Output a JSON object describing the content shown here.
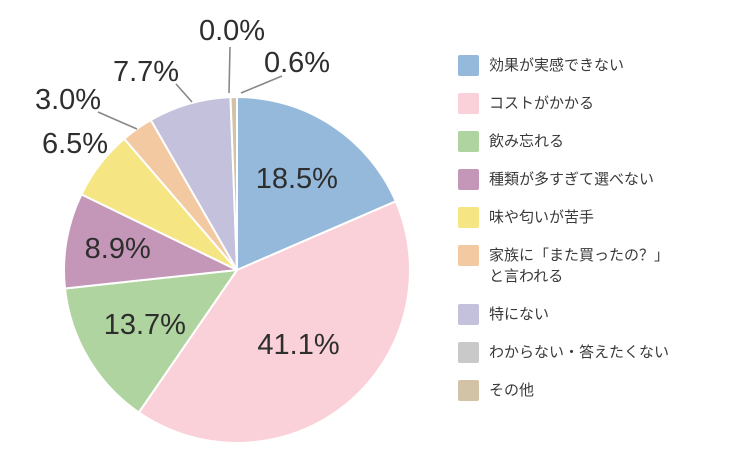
{
  "page": {
    "background": "#ffffff"
  },
  "chart_data": {
    "type": "pie",
    "title": "",
    "unit": "%",
    "direction": "clockwise",
    "start_angle": "12-oclock",
    "legend_position": "right",
    "label_color": "#2e2e2e",
    "leader_line_color": "#888888",
    "slices": [
      {
        "label": "効果が実感できない",
        "value": 18.5,
        "display": "18.5%",
        "color": "#94b9da"
      },
      {
        "label": "コストがかかる",
        "value": 41.1,
        "display": "41.1%",
        "color": "#fad1d8"
      },
      {
        "label": "飲み忘れる",
        "value": 13.7,
        "display": "13.7%",
        "color": "#afd4a0"
      },
      {
        "label": "種類が多すぎて選べない",
        "value": 8.9,
        "display": "8.9%",
        "color": "#c496b8"
      },
      {
        "label": "味や匂いが苦手",
        "value": 6.5,
        "display": "6.5%",
        "color": "#f6e583"
      },
      {
        "label": "家族に「また買ったの？」と言われる",
        "legend_label": "家族に「また買ったの？」\nと言われる",
        "value": 3.0,
        "display": "3.0%",
        "color": "#f3c9a2"
      },
      {
        "label": "特にない",
        "value": 7.7,
        "display": "7.7%",
        "color": "#c4c1dc"
      },
      {
        "label": "わからない・答えたくない",
        "value": 0.0,
        "display": "0.0%",
        "color": "#c9c9c9"
      },
      {
        "label": "その他",
        "value": 0.6,
        "display": "0.6%",
        "color": "#d2c3a7"
      }
    ]
  }
}
